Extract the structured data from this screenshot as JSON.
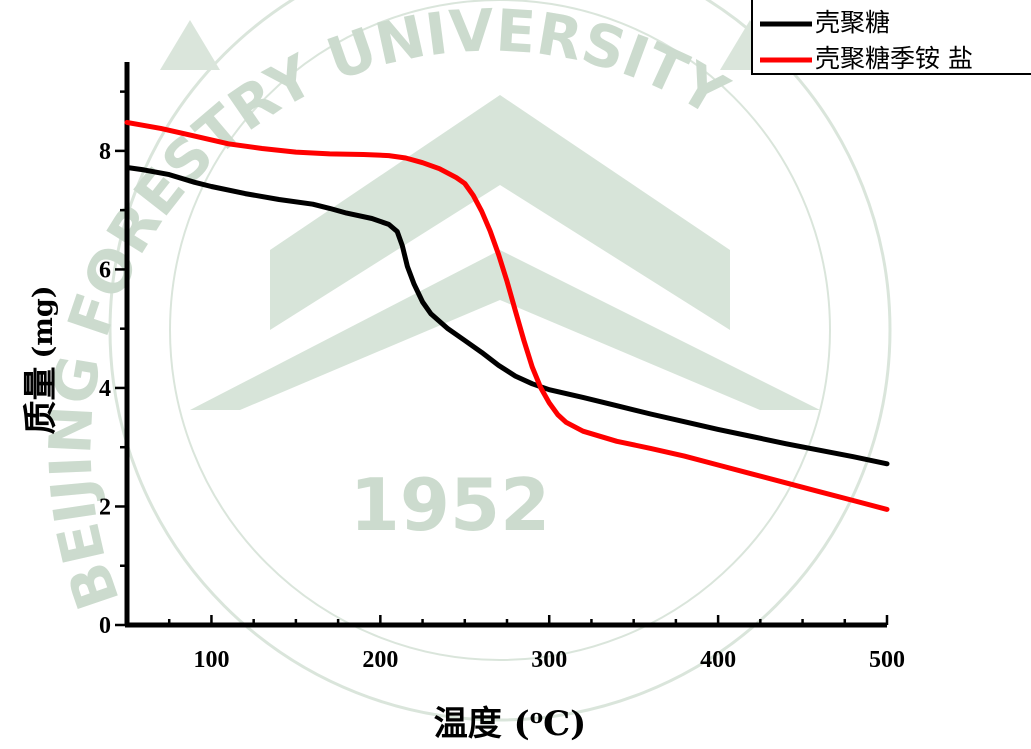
{
  "watermark": {
    "arc_top": "BEIJING FORESTRY UNIVERSITY",
    "year": "1952",
    "color": "#c7d8c9"
  },
  "chart_data": {
    "type": "line",
    "title": "",
    "xlabel": "温度 (°C)",
    "xlabel_main": "温度 (",
    "xlabel_sup": "o",
    "xlabel_tail": "C)",
    "ylabel": "质量 (mg)",
    "ylabel_main": "质量",
    "ylabel_unit": "(mg)",
    "xlim": [
      50,
      500
    ],
    "ylim": [
      0,
      9.5
    ],
    "xticks": [
      100,
      200,
      300,
      400,
      500
    ],
    "yticks": [
      0,
      2,
      4,
      6,
      8
    ],
    "grid": false,
    "legend_position": "top-right",
    "series": [
      {
        "name": "壳聚糖",
        "color": "#000000",
        "points": [
          [
            50,
            7.72
          ],
          [
            60,
            7.68
          ],
          [
            75,
            7.6
          ],
          [
            90,
            7.47
          ],
          [
            100,
            7.4
          ],
          [
            120,
            7.28
          ],
          [
            140,
            7.18
          ],
          [
            160,
            7.1
          ],
          [
            170,
            7.03
          ],
          [
            180,
            6.95
          ],
          [
            195,
            6.86
          ],
          [
            205,
            6.76
          ],
          [
            210,
            6.64
          ],
          [
            213,
            6.4
          ],
          [
            216,
            6.05
          ],
          [
            220,
            5.75
          ],
          [
            225,
            5.45
          ],
          [
            230,
            5.25
          ],
          [
            240,
            5.0
          ],
          [
            250,
            4.8
          ],
          [
            260,
            4.6
          ],
          [
            270,
            4.38
          ],
          [
            280,
            4.2
          ],
          [
            290,
            4.07
          ],
          [
            300,
            3.97
          ],
          [
            320,
            3.84
          ],
          [
            340,
            3.7
          ],
          [
            360,
            3.56
          ],
          [
            380,
            3.43
          ],
          [
            400,
            3.3
          ],
          [
            420,
            3.18
          ],
          [
            440,
            3.06
          ],
          [
            460,
            2.95
          ],
          [
            480,
            2.84
          ],
          [
            500,
            2.72
          ]
        ]
      },
      {
        "name": "壳聚糖季铵 盐",
        "color": "#ff0000",
        "points": [
          [
            50,
            8.48
          ],
          [
            70,
            8.38
          ],
          [
            90,
            8.25
          ],
          [
            110,
            8.12
          ],
          [
            130,
            8.04
          ],
          [
            150,
            7.98
          ],
          [
            170,
            7.95
          ],
          [
            190,
            7.94
          ],
          [
            205,
            7.92
          ],
          [
            215,
            7.88
          ],
          [
            225,
            7.8
          ],
          [
            235,
            7.7
          ],
          [
            245,
            7.55
          ],
          [
            250,
            7.45
          ],
          [
            255,
            7.25
          ],
          [
            260,
            6.98
          ],
          [
            265,
            6.65
          ],
          [
            270,
            6.25
          ],
          [
            275,
            5.8
          ],
          [
            280,
            5.3
          ],
          [
            285,
            4.8
          ],
          [
            290,
            4.35
          ],
          [
            295,
            4.0
          ],
          [
            300,
            3.75
          ],
          [
            305,
            3.55
          ],
          [
            310,
            3.42
          ],
          [
            320,
            3.27
          ],
          [
            340,
            3.1
          ],
          [
            360,
            2.98
          ],
          [
            380,
            2.85
          ],
          [
            400,
            2.7
          ],
          [
            420,
            2.55
          ],
          [
            440,
            2.4
          ],
          [
            460,
            2.25
          ],
          [
            480,
            2.1
          ],
          [
            500,
            1.95
          ]
        ]
      }
    ]
  }
}
